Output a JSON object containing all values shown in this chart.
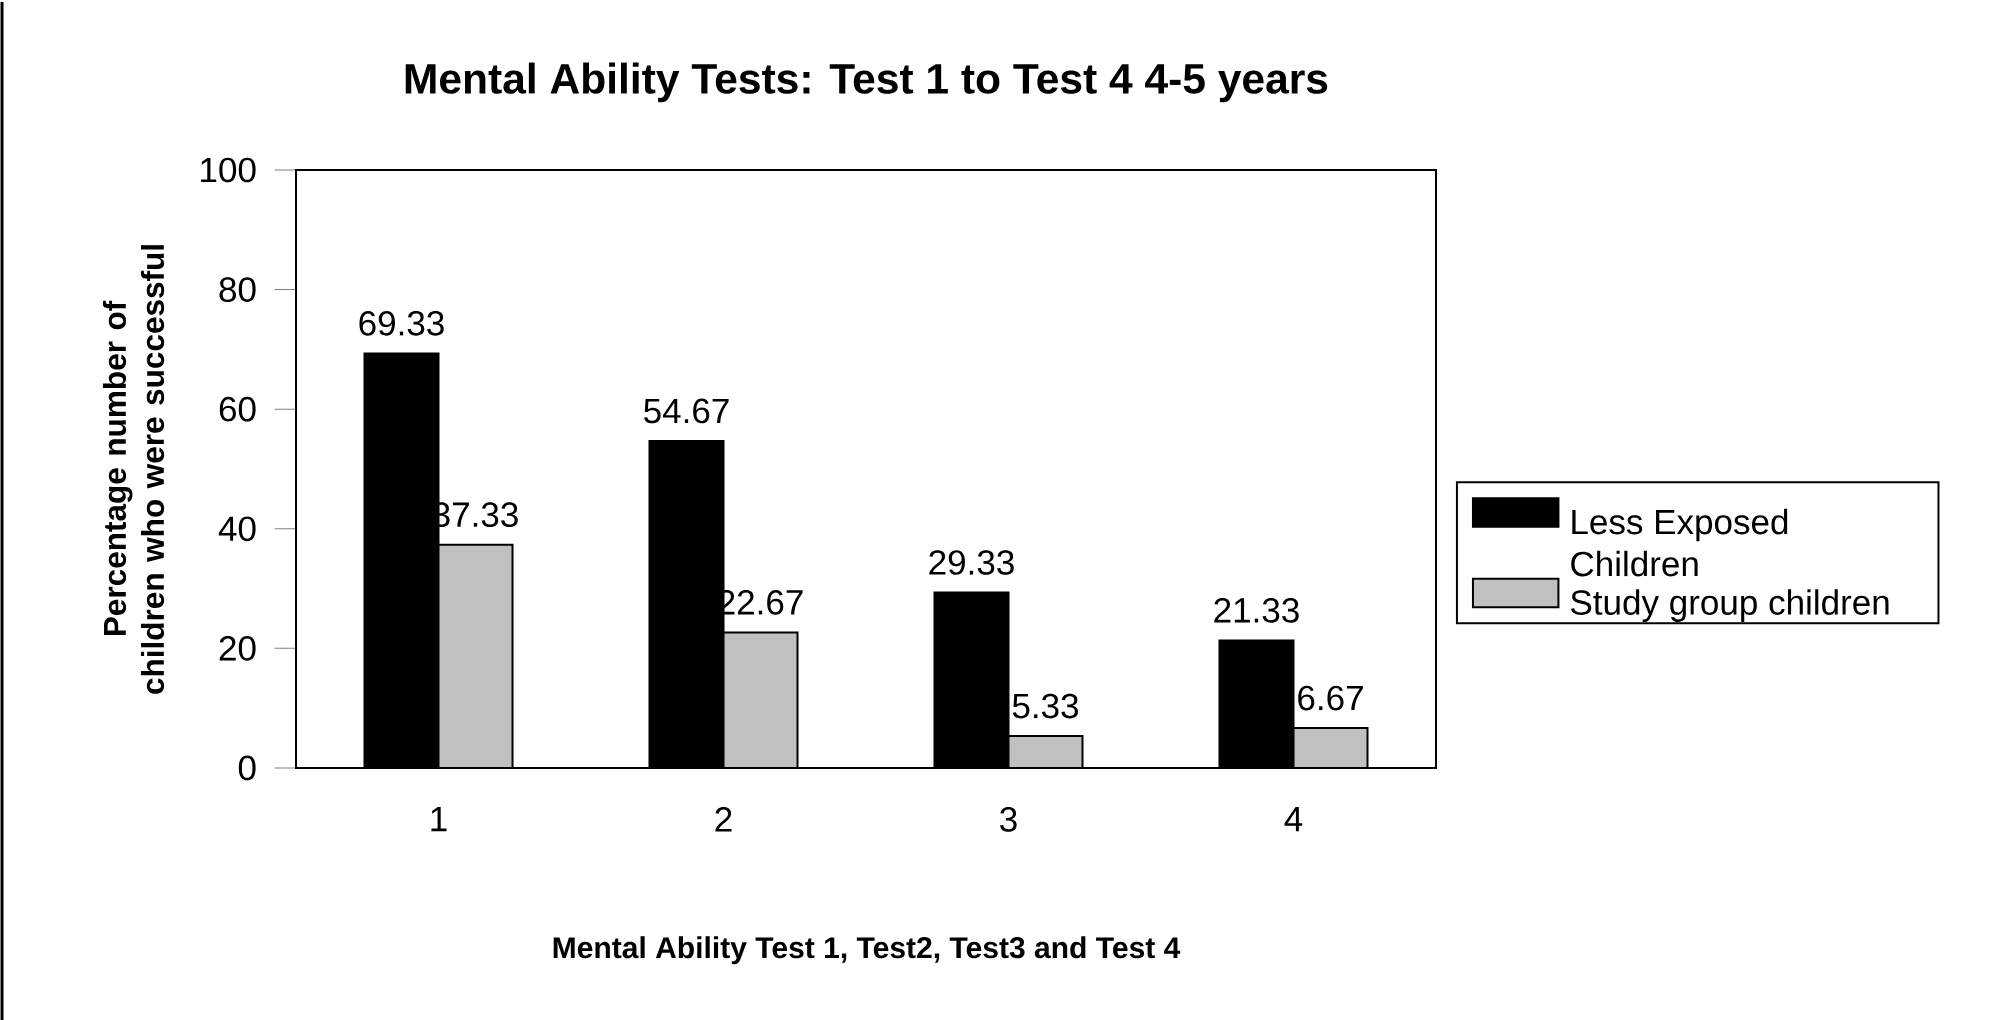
{
  "chart_data": {
    "type": "bar",
    "title": "Mental Ability Tests: Test 1 to Test 4 4-5 years",
    "xlabel": "Mental Ability Test 1, Test2, Test3 and Test 4",
    "ylabel": "Percentage number of children who were successful",
    "categories": [
      "1",
      "2",
      "3",
      "4"
    ],
    "series": [
      {
        "name": "Less Exposed Children",
        "color": "#000000",
        "values": [
          69.33,
          54.67,
          29.33,
          21.33
        ]
      },
      {
        "name": "Study group children",
        "color": "#c0c0c0",
        "values": [
          37.33,
          22.67,
          5.33,
          6.67
        ]
      }
    ],
    "ylim": [
      0,
      100
    ],
    "yticks": [
      0,
      20,
      40,
      60,
      80,
      100
    ],
    "data_labels": true,
    "legend": "right",
    "grid": false
  }
}
